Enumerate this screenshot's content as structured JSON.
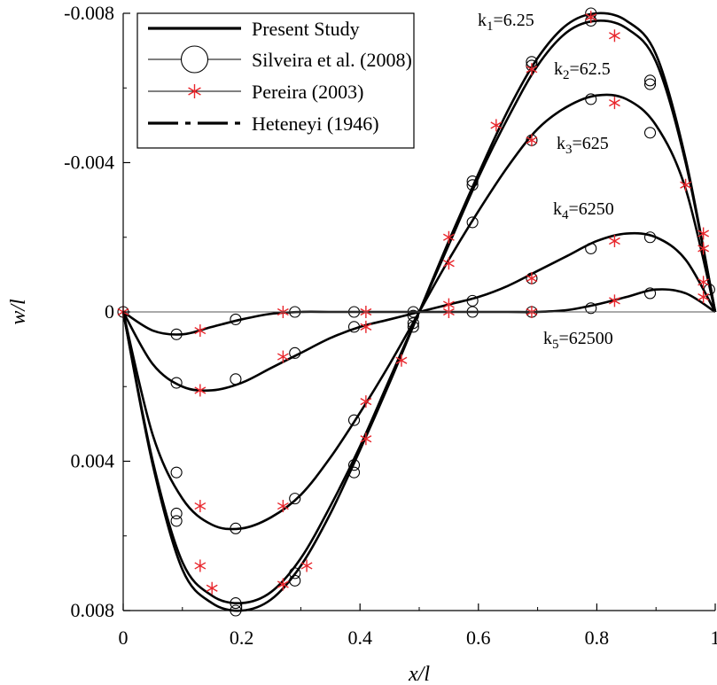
{
  "chart_data": {
    "type": "line",
    "xlabel": "x/l",
    "ylabel": "w/l",
    "xlim": [
      0,
      1.0
    ],
    "ylim": [
      -0.008,
      0.008
    ],
    "y_axis_inverted": true,
    "x_ticks": [
      0,
      0.2,
      0.4,
      0.6,
      0.8,
      1.0
    ],
    "x_tick_labels": [
      "0",
      "0.2",
      "0.4",
      "0.6",
      "0.8",
      "1"
    ],
    "y_ticks": [
      -0.008,
      -0.004,
      0,
      0.004,
      0.008
    ],
    "y_tick_labels": [
      "-0.008",
      "-0.004",
      "0",
      "0.004",
      "0.008"
    ],
    "grid": false,
    "zero_line": true,
    "legend_position": "top-left",
    "legend": [
      {
        "label": "Present Study",
        "style": "thick-solid"
      },
      {
        "label": "Silveira et al. (2008)",
        "style": "thin-line-open-circle"
      },
      {
        "label": "Pereira (2003)",
        "style": "thin-line-red-asterisk"
      },
      {
        "label": "Heteneyi (1946)",
        "style": "thick-dash-dot"
      }
    ],
    "colors": {
      "line": "#000000",
      "pereira_marker": "#e8262c",
      "silveira_marker": "#000000"
    },
    "series": [
      {
        "name": "k1=6.25",
        "label_k": "k",
        "label_sub": "1",
        "label_rest": "=6.25",
        "x": [
          0,
          0.05,
          0.1,
          0.15,
          0.2,
          0.25,
          0.3,
          0.35,
          0.4,
          0.45,
          0.5,
          0.55,
          0.6,
          0.65,
          0.7,
          0.75,
          0.8,
          0.85,
          0.9,
          0.95,
          1.0
        ],
        "y": [
          0,
          0.0041,
          0.0069,
          0.0078,
          0.008,
          0.0077,
          0.0068,
          0.0054,
          0.0037,
          0.0019,
          0,
          -0.0019,
          -0.0037,
          -0.0054,
          -0.0068,
          -0.0077,
          -0.008,
          -0.0078,
          -0.0069,
          -0.0041,
          0
        ]
      },
      {
        "name": "k2=62.5",
        "label_k": "k",
        "label_sub": "2",
        "label_rest": "=62.5",
        "x": [
          0,
          0.05,
          0.1,
          0.15,
          0.2,
          0.25,
          0.3,
          0.35,
          0.4,
          0.45,
          0.5,
          0.55,
          0.6,
          0.65,
          0.7,
          0.75,
          0.8,
          0.85,
          0.9,
          0.95,
          1.0
        ],
        "y": [
          0,
          0.004,
          0.0067,
          0.0076,
          0.0078,
          0.0075,
          0.0066,
          0.0052,
          0.0036,
          0.0018,
          0,
          -0.0018,
          -0.0036,
          -0.0052,
          -0.0066,
          -0.0075,
          -0.0078,
          -0.0076,
          -0.0067,
          -0.004,
          0
        ]
      },
      {
        "name": "k3=625",
        "label_k": "k",
        "label_sub": "3",
        "label_rest": "=625",
        "x": [
          0,
          0.05,
          0.1,
          0.15,
          0.2,
          0.25,
          0.3,
          0.35,
          0.4,
          0.45,
          0.5,
          0.55,
          0.6,
          0.65,
          0.7,
          0.75,
          0.8,
          0.85,
          0.9,
          0.95,
          1.0
        ],
        "y": [
          0,
          0.0033,
          0.005,
          0.0057,
          0.0058,
          0.0055,
          0.0049,
          0.0039,
          0.0027,
          0.0014,
          0,
          -0.0014,
          -0.0027,
          -0.0039,
          -0.0049,
          -0.0055,
          -0.0058,
          -0.0057,
          -0.005,
          -0.0033,
          0
        ]
      },
      {
        "name": "k4=6250",
        "label_k": "k",
        "label_sub": "4",
        "label_rest": "=6250",
        "x": [
          0,
          0.05,
          0.1,
          0.15,
          0.2,
          0.25,
          0.3,
          0.35,
          0.4,
          0.45,
          0.5,
          0.55,
          0.6,
          0.65,
          0.7,
          0.75,
          0.8,
          0.85,
          0.9,
          0.95,
          1.0
        ],
        "y": [
          0,
          0.0014,
          0.002,
          0.0021,
          0.0019,
          0.0015,
          0.0011,
          0.0007,
          0.0004,
          0.0002,
          0,
          -0.0002,
          -0.0004,
          -0.0007,
          -0.0011,
          -0.0015,
          -0.0019,
          -0.0021,
          -0.002,
          -0.0014,
          0
        ]
      },
      {
        "name": "k5=62500",
        "label_k": "k",
        "label_sub": "5",
        "label_rest": "=62500",
        "x": [
          0,
          0.05,
          0.1,
          0.15,
          0.2,
          0.25,
          0.3,
          0.35,
          0.4,
          0.45,
          0.5,
          0.55,
          0.6,
          0.65,
          0.7,
          0.75,
          0.8,
          0.85,
          0.9,
          0.95,
          1.0
        ],
        "y": [
          0,
          0.0005,
          0.0006,
          0.0004,
          0.0002,
          5e-05,
          0,
          0,
          0,
          0,
          0,
          0,
          0,
          0,
          0,
          -5e-05,
          -0.0002,
          -0.0004,
          -0.0006,
          -0.0005,
          0
        ]
      }
    ],
    "silveira_points": [
      {
        "x": 0.0,
        "y": 0.0
      },
      {
        "x": 0.09,
        "y": 0.0054
      },
      {
        "x": 0.09,
        "y": 0.0056
      },
      {
        "x": 0.19,
        "y": 0.0078
      },
      {
        "x": 0.19,
        "y": 0.008
      },
      {
        "x": 0.29,
        "y": 0.007
      },
      {
        "x": 0.29,
        "y": 0.0072
      },
      {
        "x": 0.39,
        "y": 0.0041
      },
      {
        "x": 0.39,
        "y": 0.0043
      },
      {
        "x": 0.49,
        "y": 0.0004
      },
      {
        "x": 0.59,
        "y": -0.0034
      },
      {
        "x": 0.59,
        "y": -0.0035
      },
      {
        "x": 0.69,
        "y": -0.0066
      },
      {
        "x": 0.69,
        "y": -0.0067
      },
      {
        "x": 0.79,
        "y": -0.0078
      },
      {
        "x": 0.79,
        "y": -0.008
      },
      {
        "x": 0.89,
        "y": -0.0061
      },
      {
        "x": 0.89,
        "y": -0.0062
      },
      {
        "x": 0.99,
        "y": -0.0006
      },
      {
        "x": 0.09,
        "y": 0.0043
      },
      {
        "x": 0.19,
        "y": 0.0058
      },
      {
        "x": 0.29,
        "y": 0.005
      },
      {
        "x": 0.39,
        "y": 0.0029
      },
      {
        "x": 0.49,
        "y": 0.0003
      },
      {
        "x": 0.59,
        "y": -0.0024
      },
      {
        "x": 0.69,
        "y": -0.0046
      },
      {
        "x": 0.79,
        "y": -0.0057
      },
      {
        "x": 0.89,
        "y": -0.0048
      },
      {
        "x": 0.09,
        "y": 0.0019
      },
      {
        "x": 0.19,
        "y": 0.0018
      },
      {
        "x": 0.29,
        "y": 0.0011
      },
      {
        "x": 0.39,
        "y": 0.0004
      },
      {
        "x": 0.49,
        "y": 0.0001
      },
      {
        "x": 0.59,
        "y": -0.0003
      },
      {
        "x": 0.69,
        "y": -0.0009
      },
      {
        "x": 0.79,
        "y": -0.0017
      },
      {
        "x": 0.89,
        "y": -0.002
      },
      {
        "x": 0.09,
        "y": 0.0006
      },
      {
        "x": 0.19,
        "y": 0.0002
      },
      {
        "x": 0.29,
        "y": 0.0
      },
      {
        "x": 0.39,
        "y": 0.0
      },
      {
        "x": 0.49,
        "y": 0.0
      },
      {
        "x": 0.59,
        "y": 0.0
      },
      {
        "x": 0.69,
        "y": 0.0
      },
      {
        "x": 0.79,
        "y": -0.0001
      },
      {
        "x": 0.89,
        "y": -0.0005
      }
    ],
    "pereira_points": [
      {
        "x": 0.0,
        "y": 0.0
      },
      {
        "x": 0.13,
        "y": 0.0068
      },
      {
        "x": 0.15,
        "y": 0.0074
      },
      {
        "x": 0.27,
        "y": 0.0073
      },
      {
        "x": 0.31,
        "y": 0.0068
      },
      {
        "x": 0.41,
        "y": 0.0034
      },
      {
        "x": 0.55,
        "y": -0.002
      },
      {
        "x": 0.63,
        "y": -0.005
      },
      {
        "x": 0.69,
        "y": -0.0065
      },
      {
        "x": 0.79,
        "y": -0.0079
      },
      {
        "x": 0.83,
        "y": -0.0074
      },
      {
        "x": 0.95,
        "y": -0.0034
      },
      {
        "x": 0.98,
        "y": -0.0021
      },
      {
        "x": 0.13,
        "y": 0.0052
      },
      {
        "x": 0.27,
        "y": 0.0052
      },
      {
        "x": 0.41,
        "y": 0.0024
      },
      {
        "x": 0.47,
        "y": 0.0013
      },
      {
        "x": 0.55,
        "y": -0.0013
      },
      {
        "x": 0.69,
        "y": -0.0046
      },
      {
        "x": 0.83,
        "y": -0.0056
      },
      {
        "x": 0.98,
        "y": -0.0017
      },
      {
        "x": 0.13,
        "y": 0.0021
      },
      {
        "x": 0.27,
        "y": 0.0012
      },
      {
        "x": 0.41,
        "y": 0.0004
      },
      {
        "x": 0.55,
        "y": -0.0002
      },
      {
        "x": 0.69,
        "y": -0.0009
      },
      {
        "x": 0.83,
        "y": -0.0019
      },
      {
        "x": 0.98,
        "y": -0.0008
      },
      {
        "x": 0.13,
        "y": 0.0005
      },
      {
        "x": 0.27,
        "y": 0.0
      },
      {
        "x": 0.41,
        "y": 0.0
      },
      {
        "x": 0.55,
        "y": 0.0
      },
      {
        "x": 0.69,
        "y": 0.0
      },
      {
        "x": 0.83,
        "y": -0.0003
      },
      {
        "x": 0.98,
        "y": -0.0004
      }
    ]
  }
}
